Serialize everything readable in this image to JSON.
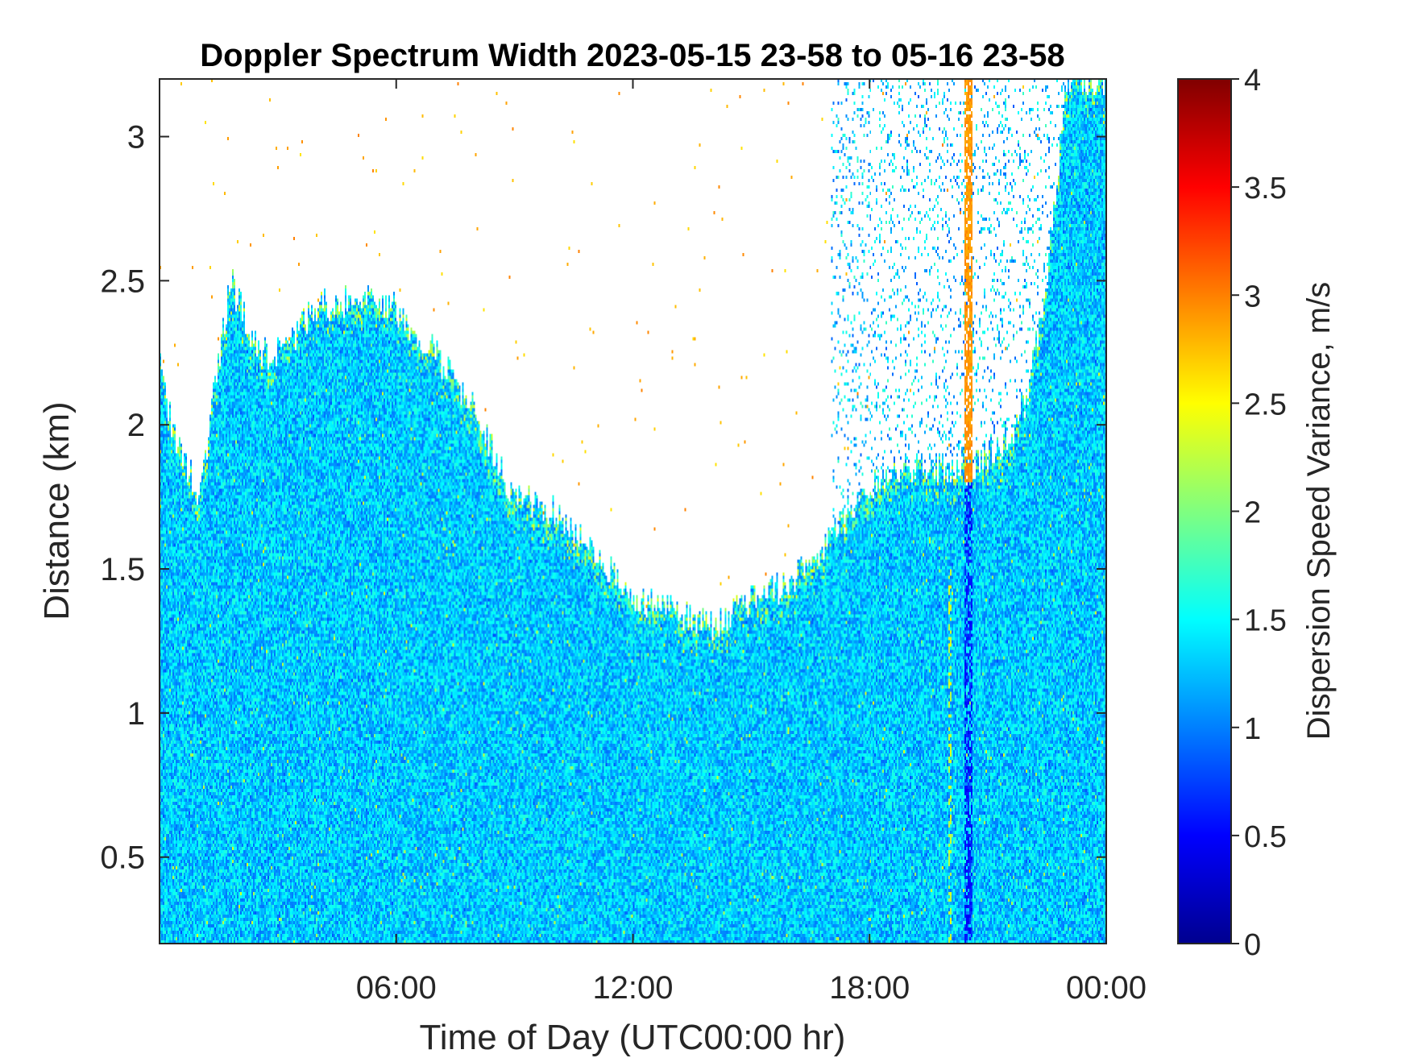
{
  "chart_data": {
    "type": "heatmap",
    "title": "Doppler Spectrum Width 2023-05-15 23-58 to 05-16 23-58",
    "xlabel": "Time of Day (UTC00:00 hr)",
    "ylabel": "Distance (km)",
    "xlim_hours": [
      0,
      24
    ],
    "ylim_km": [
      0.2,
      3.2
    ],
    "x_ticks": [
      {
        "value": 6,
        "label": "06:00"
      },
      {
        "value": 12,
        "label": "12:00"
      },
      {
        "value": 18,
        "label": "18:00"
      },
      {
        "value": 24,
        "label": "00:00"
      }
    ],
    "y_ticks": [
      {
        "value": 0.5,
        "label": "0.5"
      },
      {
        "value": 1,
        "label": "1"
      },
      {
        "value": 1.5,
        "label": "1.5"
      },
      {
        "value": 2,
        "label": "2"
      },
      {
        "value": 2.5,
        "label": "2.5"
      },
      {
        "value": 3,
        "label": "3"
      }
    ],
    "colorbar": {
      "label": "Dispersion Speed Variance, m/s",
      "colormap": "jet",
      "range": [
        0,
        4
      ],
      "ticks": [
        {
          "value": 0,
          "label": "0"
        },
        {
          "value": 0.5,
          "label": "0.5"
        },
        {
          "value": 1,
          "label": "1"
        },
        {
          "value": 1.5,
          "label": "1.5"
        },
        {
          "value": 2,
          "label": "2"
        },
        {
          "value": 2.5,
          "label": "2.5"
        },
        {
          "value": 3,
          "label": "3"
        },
        {
          "value": 3.5,
          "label": "3.5"
        },
        {
          "value": 4,
          "label": "4"
        }
      ]
    },
    "typical_value": 1.3,
    "signal_top_km": [
      {
        "hour": 0.0,
        "km": 2.3
      },
      {
        "hour": 0.3,
        "km": 2.0
      },
      {
        "hour": 1.0,
        "km": 1.75
      },
      {
        "hour": 1.8,
        "km": 2.5
      },
      {
        "hour": 2.5,
        "km": 2.25
      },
      {
        "hour": 3.0,
        "km": 2.25
      },
      {
        "hour": 4.0,
        "km": 2.4
      },
      {
        "hour": 5.0,
        "km": 2.45
      },
      {
        "hour": 6.0,
        "km": 2.4
      },
      {
        "hour": 7.0,
        "km": 2.25
      },
      {
        "hour": 8.0,
        "km": 2.05
      },
      {
        "hour": 9.0,
        "km": 1.75
      },
      {
        "hour": 10.0,
        "km": 1.7
      },
      {
        "hour": 11.0,
        "km": 1.55
      },
      {
        "hour": 12.0,
        "km": 1.4
      },
      {
        "hour": 13.0,
        "km": 1.35
      },
      {
        "hour": 14.0,
        "km": 1.3
      },
      {
        "hour": 15.0,
        "km": 1.4
      },
      {
        "hour": 16.0,
        "km": 1.45
      },
      {
        "hour": 17.0,
        "km": 1.6
      },
      {
        "hour": 17.8,
        "km": 1.75
      },
      {
        "hour": 18.5,
        "km": 1.85
      },
      {
        "hour": 19.5,
        "km": 1.85
      },
      {
        "hour": 20.5,
        "km": 1.85
      },
      {
        "hour": 21.5,
        "km": 1.95
      },
      {
        "hour": 22.0,
        "km": 2.1
      },
      {
        "hour": 22.5,
        "km": 2.5
      },
      {
        "hour": 23.0,
        "km": 3.2
      },
      {
        "hour": 24.0,
        "km": 3.2
      }
    ],
    "features": [
      {
        "kind": "orange-streak",
        "hour_start": 20.4,
        "hour_end": 20.6,
        "km_from": 1.8,
        "km_to": 3.2,
        "value": 2.9
      },
      {
        "kind": "dark-streak",
        "hour_start": 20.4,
        "hour_end": 20.6,
        "km_from": 0.2,
        "km_to": 1.8,
        "value": 0.6
      },
      {
        "kind": "yellow-streak",
        "hour_start": 20.0,
        "hour_end": 20.1,
        "km_from": 0.2,
        "km_to": 1.5,
        "value": 2.3
      }
    ]
  }
}
